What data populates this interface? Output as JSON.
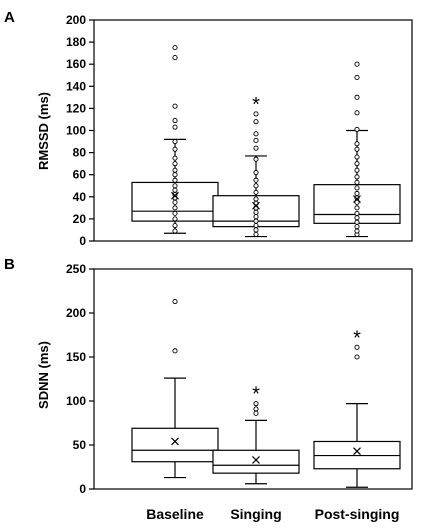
{
  "categories": [
    "Baseline",
    "Singing",
    "Post-singing"
  ],
  "chart_data": [
    {
      "type": "box",
      "panel_label": "A",
      "ylabel": "RMSSD (ms)",
      "ylim": [
        0,
        200
      ],
      "yticks": [
        0,
        20,
        40,
        60,
        80,
        100,
        120,
        140,
        160,
        180,
        200
      ],
      "categories": [
        "Baseline",
        "Singing",
        "Post-singing"
      ],
      "boxes": [
        {
          "category": "Baseline",
          "min": 7,
          "q1": 18,
          "median": 27,
          "q3": 53,
          "max": 92,
          "mean": 41,
          "points": [
            9,
            14,
            20,
            25,
            30,
            35,
            39,
            42,
            46,
            50,
            55,
            60,
            64,
            70,
            75,
            83,
            90,
            103,
            109,
            122,
            166,
            175
          ],
          "annotation": ""
        },
        {
          "category": "Singing",
          "min": 4,
          "q1": 13,
          "median": 18,
          "q3": 41,
          "max": 77,
          "mean": 32,
          "points": [
            6,
            10,
            14,
            18,
            22,
            26,
            30,
            34,
            38,
            44,
            50,
            55,
            62,
            74,
            84,
            91,
            97,
            108,
            115
          ],
          "annotation": "*"
        },
        {
          "category": "Post-singing",
          "min": 4,
          "q1": 16,
          "median": 24,
          "q3": 51,
          "max": 100,
          "mean": 38,
          "points": [
            6,
            9,
            13,
            17,
            21,
            25,
            30,
            35,
            39,
            43,
            48,
            53,
            58,
            64,
            70,
            76,
            83,
            88,
            101,
            116,
            130,
            148,
            160
          ],
          "annotation": ""
        }
      ]
    },
    {
      "type": "box",
      "panel_label": "B",
      "ylabel": "SDNN (ms)",
      "ylim": [
        0,
        250
      ],
      "yticks": [
        0,
        50,
        100,
        150,
        200,
        250
      ],
      "categories": [
        "Baseline",
        "Singing",
        "Post-singing"
      ],
      "boxes": [
        {
          "category": "Baseline",
          "min": 13,
          "q1": 31,
          "median": 44,
          "q3": 69,
          "max": 126,
          "mean": 54,
          "points": [
            157,
            213
          ],
          "annotation": ""
        },
        {
          "category": "Singing",
          "min": 6,
          "q1": 18,
          "median": 27,
          "q3": 44,
          "max": 78,
          "mean": 33,
          "points": [
            86,
            91,
            97
          ],
          "annotation": "*"
        },
        {
          "category": "Post-singing",
          "min": 2,
          "q1": 23,
          "median": 38,
          "q3": 54,
          "max": 97,
          "mean": 43,
          "points": [
            150,
            161
          ],
          "annotation": "*"
        }
      ]
    }
  ]
}
